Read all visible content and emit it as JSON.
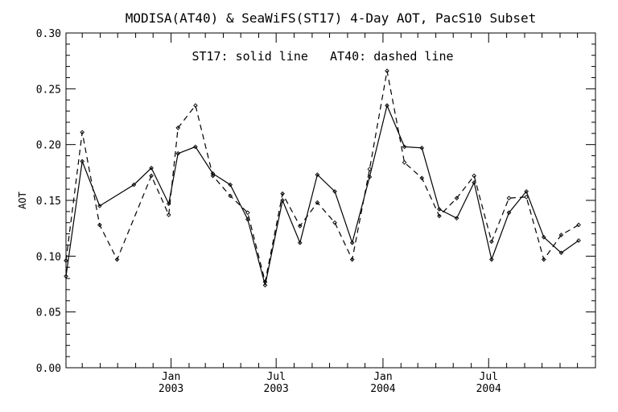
{
  "chart_data": {
    "type": "line",
    "title": "MODISA(AT40) & SeaWiFS(ST17) 4-Day AOT, PacS10 Subset",
    "annotation": "ST17: solid line   AT40: dashed line",
    "ylabel": "AOT",
    "xlabel": "",
    "ylim": [
      0.0,
      0.3
    ],
    "xlim": [
      "2002-07-04",
      "2005-01-01"
    ],
    "grid": false,
    "legend": "none",
    "y_ticks": [
      "0.00",
      "0.05",
      "0.10",
      "0.15",
      "0.20",
      "0.25",
      "0.30"
    ],
    "x_ticks": [
      {
        "date": "2003-01-01",
        "month": "Jan",
        "year": "2003"
      },
      {
        "date": "2003-07-01",
        "month": "Jul",
        "year": "2003"
      },
      {
        "date": "2004-01-01",
        "month": "Jan",
        "year": "2004"
      },
      {
        "date": "2004-07-01",
        "month": "Jul",
        "year": "2004"
      }
    ],
    "series": [
      {
        "name": "ST17",
        "style": "solid",
        "color": "#000000",
        "points": [
          [
            "2002-07-04",
            0.082
          ],
          [
            "2002-08-01",
            0.185
          ],
          [
            "2002-08-31",
            0.145
          ],
          [
            "2002-10-29",
            0.164
          ],
          [
            "2002-11-28",
            0.179
          ],
          [
            "2002-12-28",
            0.147
          ],
          [
            "2003-01-13",
            0.192
          ],
          [
            "2003-02-12",
            0.198
          ],
          [
            "2003-03-14",
            0.174
          ],
          [
            "2003-04-13",
            0.164
          ],
          [
            "2003-05-13",
            0.133
          ],
          [
            "2003-06-12",
            0.074
          ],
          [
            "2003-07-12",
            0.15
          ],
          [
            "2003-08-11",
            0.112
          ],
          [
            "2003-09-10",
            0.173
          ],
          [
            "2003-10-10",
            0.158
          ],
          [
            "2003-11-09",
            0.112
          ],
          [
            "2003-12-09",
            0.171
          ],
          [
            "2004-01-08",
            0.235
          ],
          [
            "2004-02-07",
            0.198
          ],
          [
            "2004-03-08",
            0.197
          ],
          [
            "2004-04-07",
            0.142
          ],
          [
            "2004-05-07",
            0.134
          ],
          [
            "2004-06-06",
            0.166
          ],
          [
            "2004-07-06",
            0.097
          ],
          [
            "2004-08-05",
            0.139
          ],
          [
            "2004-09-04",
            0.158
          ],
          [
            "2004-10-04",
            0.117
          ],
          [
            "2004-11-03",
            0.103
          ],
          [
            "2004-12-03",
            0.114
          ]
        ]
      },
      {
        "name": "AT40",
        "style": "dashed",
        "color": "#000000",
        "points": [
          [
            "2002-07-04",
            0.096
          ],
          [
            "2002-08-01",
            0.211
          ],
          [
            "2002-08-31",
            0.128
          ],
          [
            "2002-09-30",
            0.097
          ],
          [
            "2002-11-28",
            0.172
          ],
          [
            "2002-12-28",
            0.137
          ],
          [
            "2003-01-13",
            0.215
          ],
          [
            "2003-02-12",
            0.235
          ],
          [
            "2003-03-14",
            0.172
          ],
          [
            "2003-04-13",
            0.154
          ],
          [
            "2003-05-13",
            0.139
          ],
          [
            "2003-06-12",
            0.077
          ],
          [
            "2003-07-12",
            0.156
          ],
          [
            "2003-08-11",
            0.127
          ],
          [
            "2003-09-10",
            0.148
          ],
          [
            "2003-10-10",
            0.13
          ],
          [
            "2003-11-09",
            0.097
          ],
          [
            "2003-12-09",
            0.178
          ],
          [
            "2004-01-08",
            0.266
          ],
          [
            "2004-02-07",
            0.184
          ],
          [
            "2004-03-08",
            0.17
          ],
          [
            "2004-04-07",
            0.136
          ],
          [
            "2004-05-07",
            0.152
          ],
          [
            "2004-06-06",
            0.172
          ],
          [
            "2004-07-06",
            0.113
          ],
          [
            "2004-08-05",
            0.152
          ],
          [
            "2004-09-04",
            0.153
          ],
          [
            "2004-10-04",
            0.097
          ],
          [
            "2004-11-03",
            0.119
          ],
          [
            "2004-12-03",
            0.128
          ]
        ]
      }
    ]
  }
}
